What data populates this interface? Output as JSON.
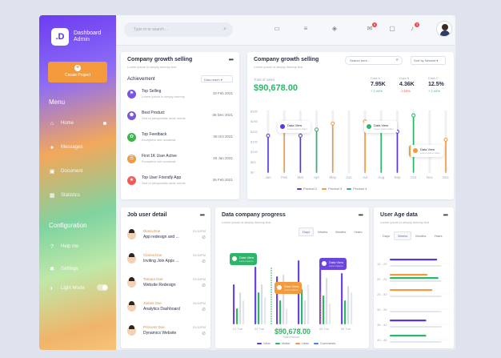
{
  "app": {
    "logo": ".D",
    "title": "Dashboard",
    "subtitle": "Admin"
  },
  "sidebar": {
    "create_label": "Create Project",
    "menu_header": "Menu",
    "items": [
      {
        "label": "Home",
        "icon": "home-icon"
      },
      {
        "label": "Messages",
        "icon": "chat-icon"
      },
      {
        "label": "Document",
        "icon": "document-icon"
      },
      {
        "label": "Statistics",
        "icon": "grid-icon"
      }
    ],
    "config_header": "Configuration",
    "config_items": [
      {
        "label": "Help me",
        "icon": "question-icon"
      },
      {
        "label": "Settings",
        "icon": "gear-icon"
      },
      {
        "label": "Light Mode",
        "icon": "contrast-icon"
      }
    ],
    "light_mode_on": true
  },
  "topbar": {
    "search_placeholder": "Type in to search...",
    "badge_mail": "6",
    "badge_bell": "3"
  },
  "growth_card": {
    "title": "Company growth selling",
    "subtitle": "Lorem ipsum is simply dummy text",
    "section": "Achievement",
    "select": "Data reach",
    "items": [
      {
        "title": "Top Selling",
        "sub": "Lorem ipsum is simply dummy",
        "date": "19 Feb 2021",
        "color": "#7b55e0",
        "icon": "flag-icon"
      },
      {
        "title": "Best Product",
        "sub": "Sed ut perspiciatis unde omnis",
        "date": "06 Dec 2021",
        "color": "#7b55e0",
        "icon": "pentagon-icon"
      },
      {
        "title": "Top Feedback",
        "sub": "Excepteur sint occaecat",
        "date": "09 Oct 2021",
        "color": "#3fb34f",
        "icon": "like-icon"
      },
      {
        "title": "First 1K User Active",
        "sub": "Excepteur sint occaecat",
        "date": "20 Jan 2021",
        "color": "#f39a3c",
        "icon": "users-icon"
      },
      {
        "title": "Top User Friendly App",
        "sub": "Sed ut perspiciatis unde omnis",
        "date": "26 Feb 2021",
        "color": "#ef5b5b",
        "icon": "star-icon"
      }
    ]
  },
  "selling_card": {
    "title": "Company growth selling",
    "subtitle": "Lorem ipsum is simply dummy text",
    "search_placeholder": "Search here...",
    "sort": "Sort by Newest",
    "total_label": "Total of sales",
    "total": "$90,678.00",
    "stats": [
      {
        "label": "Data A",
        "value": "7.95K",
        "pct": "+ 2.44%",
        "color": "#2fb46b"
      },
      {
        "label": "Data B",
        "value": "4.36K",
        "pct": "- 0.05%",
        "color": "#ea4a4a"
      },
      {
        "label": "Data C",
        "value": "12.5%",
        "pct": "+ 2.44%",
        "color": "#2fb46b"
      }
    ],
    "tooltips": [
      {
        "title": "Data View",
        "sub": "Lorem ipsum dolor",
        "color": "#5b36e0"
      },
      {
        "title": "Data View",
        "sub": "Lorem ipsum dolor",
        "color": "#2fb46b"
      },
      {
        "title": "Data View",
        "sub": "Lorem ipsum dolor",
        "color": "#f39a3c"
      }
    ]
  },
  "job_card": {
    "title": "Job user detail",
    "rows": [
      {
        "name": "Diana Doe",
        "task": "App redesign and ...",
        "time": "03:52PM"
      },
      {
        "name": "Clarisa Doe",
        "task": "Inviting Join Apps ...",
        "time": "03:52PM"
      },
      {
        "name": "Tamara Doe",
        "task": "Website Redesign",
        "time": "03:52PM"
      },
      {
        "name": "James Doe",
        "task": "Analytics Dashboard",
        "time": "03:52PM"
      },
      {
        "name": "Princess Doe",
        "task": "Dynamics Website",
        "time": "03:52PM"
      }
    ]
  },
  "progress_card": {
    "title": "Data company progress",
    "subtitle": "Lorem ipsum is simply dummy text",
    "tabs": [
      "Days",
      "Weeks",
      "Months",
      "Years"
    ],
    "active_tab": "Days",
    "total": "$90,678.00",
    "total_label": "Total revenue",
    "tooltips": [
      {
        "title": "Data View",
        "sub": "Lorem ipsum",
        "color": "#2fb46b"
      },
      {
        "title": "Data View",
        "sub": "Lorem ipsum",
        "color": "#f39a3c"
      },
      {
        "title": "Data View",
        "sub": "Lorem ipsum",
        "color": "#6a45e0"
      }
    ]
  },
  "age_card": {
    "title": "User Age data",
    "subtitle": "Lorem ipsum is simply dummy text",
    "tabs": [
      "Days",
      "Weeks",
      "Months",
      "Years"
    ],
    "active_tab": "Weeks"
  },
  "chart_data": [
    {
      "type": "line",
      "title": "Company growth selling",
      "categories": [
        "Jan",
        "Feb",
        "Mar",
        "Apr",
        "May",
        "Jun",
        "Jul",
        "Aug",
        "Sep",
        "Oct",
        "Nov",
        "Dec"
      ],
      "yticks": [
        "$300",
        "$250",
        "$200",
        "$150",
        "$100",
        "$50",
        "$0"
      ],
      "ylim": [
        0,
        300
      ],
      "series": [
        {
          "name": "Product 2",
          "color": "#5b36e0",
          "values": [
            180,
            0,
            180,
            0,
            0,
            0,
            0,
            0,
            200,
            0,
            0,
            0
          ]
        },
        {
          "name": "Product 3",
          "color": "#f39a3c",
          "values": [
            0,
            230,
            0,
            0,
            240,
            0,
            250,
            0,
            0,
            0,
            0,
            160
          ]
        },
        {
          "name": "Product 4",
          "color": "#2fb46b",
          "values": [
            0,
            0,
            0,
            210,
            0,
            0,
            0,
            240,
            0,
            280,
            0,
            0
          ]
        }
      ]
    },
    {
      "type": "bar",
      "title": "Data company progress",
      "categories": [
        "01 Tue",
        "02 Tue",
        "03 Tue",
        "04 Tue",
        "05 Tue",
        "06 Tue"
      ],
      "series": [
        {
          "name": "View",
          "color": "#5b36e0"
        },
        {
          "name": "Visitor",
          "color": "#2fb46b"
        },
        {
          "name": "Likes",
          "color": "#f39a3c"
        },
        {
          "name": "Comments",
          "color": "#3b82f6"
        }
      ]
    },
    {
      "type": "bar",
      "title": "User Age data",
      "categories": [
        "15 - 20",
        "20 - 25",
        "25 - 30",
        "30 - 35",
        "35 - 40",
        "40 - 45"
      ],
      "series": [
        {
          "name": "A",
          "color": "#5b36e0",
          "values": [
            78,
            0,
            0,
            0,
            60,
            0
          ]
        },
        {
          "name": "B",
          "color": "#f39a3c",
          "values": [
            0,
            62,
            70,
            0,
            0,
            0
          ]
        },
        {
          "name": "C",
          "color": "#2fb46b",
          "values": [
            0,
            80,
            0,
            0,
            0,
            60
          ]
        }
      ]
    }
  ]
}
